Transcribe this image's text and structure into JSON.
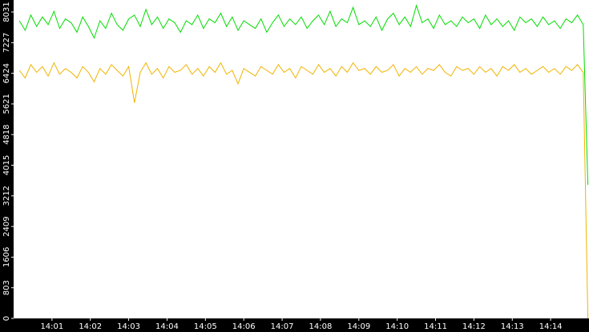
{
  "chart_data": {
    "type": "line",
    "x": [
      0.15,
      0.3,
      0.45,
      0.6,
      0.75,
      0.9,
      1.05,
      1.2,
      1.35,
      1.5,
      1.65,
      1.8,
      1.95,
      2.1,
      2.25,
      2.4,
      2.55,
      2.7,
      2.85,
      3,
      3.15,
      3.3,
      3.45,
      3.6,
      3.75,
      3.9,
      4.05,
      4.2,
      4.35,
      4.5,
      4.65,
      4.8,
      4.95,
      5.1,
      5.25,
      5.4,
      5.55,
      5.7,
      5.85,
      6,
      6.15,
      6.3,
      6.45,
      6.6,
      6.75,
      6.9,
      7.05,
      7.2,
      7.35,
      7.5,
      7.65,
      7.8,
      7.95,
      8.1,
      8.25,
      8.4,
      8.55,
      8.7,
      8.85,
      9,
      9.15,
      9.3,
      9.45,
      9.6,
      9.75,
      9.9,
      10.05,
      10.2,
      10.35,
      10.5,
      10.65,
      10.8,
      10.95,
      11.1,
      11.25,
      11.4,
      11.55,
      11.7,
      11.85,
      12,
      12.15,
      12.3,
      12.45,
      12.6,
      12.75,
      12.9,
      13.05,
      13.2,
      13.35,
      13.5,
      13.65,
      13.8,
      13.95,
      14.1,
      14.25,
      14.4,
      14.55,
      14.7,
      14.85,
      14.97
    ],
    "series": [
      {
        "color": "#00dd00",
        "values": [
          7800,
          7550,
          7950,
          7650,
          7900,
          7700,
          8050,
          7600,
          7850,
          7750,
          7500,
          7900,
          7650,
          7350,
          7800,
          7600,
          8000,
          7700,
          7550,
          7850,
          7950,
          7650,
          8100,
          7700,
          7900,
          7600,
          7850,
          7750,
          7500,
          7800,
          7700,
          7950,
          7600,
          7850,
          7750,
          8000,
          7650,
          7900,
          7550,
          7800,
          7700,
          7600,
          7850,
          7500,
          7750,
          7950,
          7650,
          7850,
          7700,
          7900,
          7600,
          7800,
          7950,
          7700,
          8050,
          7650,
          7850,
          7750,
          8150,
          7700,
          7800,
          7650,
          7900,
          7550,
          7850,
          8000,
          7700,
          7900,
          7650,
          8200,
          7750,
          7850,
          7600,
          7950,
          7700,
          7800,
          7650,
          7900,
          7750,
          7850,
          7600,
          7950,
          7700,
          7850,
          7650,
          7800,
          7550,
          7900,
          7750,
          7850,
          7650,
          7900,
          7700,
          7800,
          7600,
          7850,
          7750,
          7950,
          7700,
          3500
        ]
      },
      {
        "color": "#f0b400",
        "values": [
          6500,
          6300,
          6650,
          6450,
          6600,
          6350,
          6700,
          6400,
          6550,
          6450,
          6300,
          6600,
          6450,
          6200,
          6550,
          6400,
          6650,
          6500,
          6350,
          6600,
          5650,
          6450,
          6700,
          6400,
          6550,
          6300,
          6600,
          6450,
          6500,
          6650,
          6400,
          6550,
          6350,
          6600,
          6450,
          6700,
          6400,
          6500,
          6150,
          6550,
          6450,
          6350,
          6600,
          6500,
          6400,
          6650,
          6450,
          6550,
          6300,
          6600,
          6500,
          6400,
          6650,
          6450,
          6550,
          6350,
          6600,
          6450,
          6700,
          6500,
          6550,
          6400,
          6600,
          6450,
          6500,
          6650,
          6350,
          6550,
          6450,
          6600,
          6400,
          6550,
          6500,
          6650,
          6450,
          6350,
          6600,
          6500,
          6550,
          6400,
          6600,
          6450,
          6550,
          6350,
          6600,
          6500,
          6650,
          6450,
          6550,
          6400,
          6500,
          6600,
          6450,
          6550,
          6400,
          6600,
          6500,
          6650,
          6450,
          0
        ]
      }
    ],
    "xlim": [
      0,
      15
    ],
    "xticks": [
      {
        "value": 1,
        "label": "14:01"
      },
      {
        "value": 2,
        "label": "14:02"
      },
      {
        "value": 3,
        "label": "14:03"
      },
      {
        "value": 4,
        "label": "14:04"
      },
      {
        "value": 5,
        "label": "14:05"
      },
      {
        "value": 6,
        "label": "14:06"
      },
      {
        "value": 7,
        "label": "14:07"
      },
      {
        "value": 8,
        "label": "14:08"
      },
      {
        "value": 9,
        "label": "14:09"
      },
      {
        "value": 10,
        "label": "14:10"
      },
      {
        "value": 11,
        "label": "14:11"
      },
      {
        "value": 12,
        "label": "14:12"
      },
      {
        "value": 13,
        "label": "14:13"
      },
      {
        "value": 14,
        "label": "14:14"
      }
    ],
    "ylim": [
      0,
      8345
    ],
    "yticks": [
      0,
      803,
      1606,
      2409,
      3212,
      4015,
      4818,
      5621,
      6424,
      7227,
      8031
    ],
    "grid": false
  }
}
